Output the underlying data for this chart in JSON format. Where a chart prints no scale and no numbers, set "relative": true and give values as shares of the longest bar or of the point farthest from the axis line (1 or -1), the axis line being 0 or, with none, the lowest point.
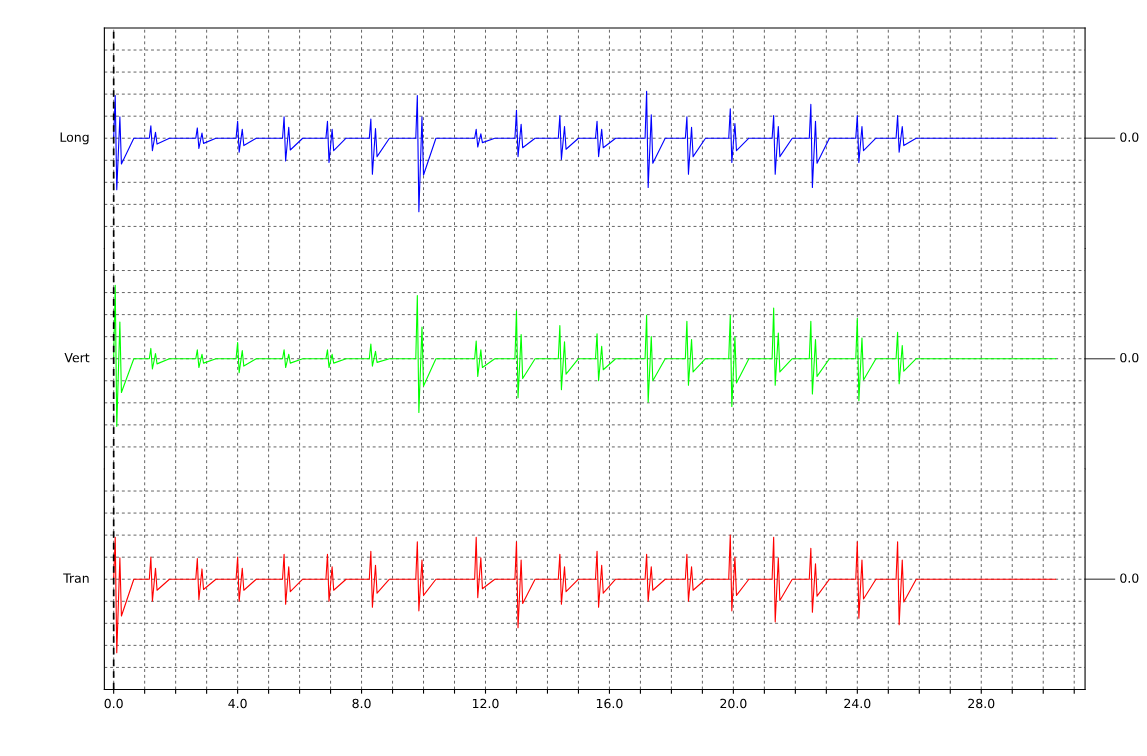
{
  "chart_data": [
    {
      "type": "line",
      "ylabel": "Long",
      "relative": true,
      "tick_labels": false,
      "grid": true,
      "annotations": [
        "0.0"
      ],
      "ref_lines": [
        {
          "axis": "x",
          "value": 0,
          "color": "#000000",
          "line_style": "dashed"
        }
      ],
      "xlim": [
        -0.3,
        31.35
      ],
      "x": [
        0,
        0.05,
        0.1,
        0.2,
        0.25,
        0.65,
        1.15,
        1.2,
        1.25,
        1.35,
        1.4,
        1.8,
        2.65,
        2.7,
        2.75,
        2.85,
        2.9,
        3.3,
        3.95,
        4.0,
        4.05,
        4.15,
        4.2,
        4.6,
        5.45,
        5.5,
        5.55,
        5.65,
        5.7,
        6.1,
        6.85,
        6.9,
        6.95,
        7.05,
        7.1,
        7.5,
        8.25,
        8.3,
        8.35,
        8.45,
        8.5,
        8.9,
        9.75,
        9.8,
        9.85,
        9.95,
        10.0,
        10.4,
        11.65,
        11.7,
        11.75,
        11.85,
        11.9,
        12.3,
        12.95,
        13.0,
        13.05,
        13.15,
        13.2,
        13.6,
        14.35,
        14.4,
        14.45,
        14.55,
        14.6,
        15.0,
        15.55,
        15.6,
        15.65,
        15.75,
        15.8,
        16.2,
        17.15,
        17.2,
        17.25,
        17.35,
        17.4,
        17.8,
        18.45,
        18.5,
        18.55,
        18.65,
        18.7,
        19.1,
        19.85,
        19.9,
        19.95,
        20.05,
        20.1,
        20.5,
        21.25,
        21.3,
        21.35,
        21.45,
        21.5,
        21.9,
        22.45,
        22.5,
        22.55,
        22.65,
        22.7,
        23.1,
        23.95,
        24.0,
        24.05,
        24.15,
        24.2,
        24.6,
        25.25,
        25.3,
        25.35,
        25.45,
        25.5,
        25.9,
        30.4
      ],
      "series": [
        {
          "color": "#0000ff",
          "values": [
            0,
            0.58,
            -0.7,
            0.29,
            -0.35,
            0,
            0,
            0.17,
            -0.17,
            0.08,
            -0.08,
            0,
            0,
            0.14,
            -0.14,
            0.07,
            -0.07,
            0,
            0,
            0.23,
            -0.19,
            0.12,
            -0.1,
            0,
            0,
            0.29,
            -0.31,
            0.15,
            -0.16,
            0,
            0,
            0.23,
            -0.33,
            0.12,
            -0.17,
            0,
            0,
            0.26,
            -0.49,
            0.13,
            -0.25,
            0,
            0,
            0.58,
            -1,
            0.29,
            -0.5,
            0,
            0,
            0.12,
            -0.12,
            0.06,
            -0.06,
            0,
            0,
            0.38,
            -0.25,
            0.19,
            -0.13,
            0,
            0,
            0.31,
            -0.29,
            0.16,
            -0.15,
            0,
            0,
            0.23,
            -0.25,
            0.12,
            -0.13,
            0,
            0,
            0.64,
            -0.67,
            0.32,
            -0.34,
            0,
            0,
            0.29,
            -0.49,
            0.15,
            -0.25,
            0,
            0,
            0.4,
            -0.33,
            0.2,
            -0.17,
            0,
            0,
            0.31,
            -0.49,
            0.16,
            -0.25,
            0,
            0,
            0.46,
            -0.67,
            0.23,
            -0.34,
            0,
            0,
            0.31,
            -0.33,
            0.16,
            -0.17,
            0,
            0,
            0.31,
            -0.19,
            0.16,
            -0.1,
            0,
            0
          ]
        }
      ]
    },
    {
      "type": "line",
      "ylabel": "Vert",
      "relative": true,
      "tick_labels": false,
      "grid": true,
      "annotations": [
        "0.0"
      ],
      "ref_lines": [
        {
          "axis": "x",
          "value": 0,
          "color": "#000000",
          "line_style": "dashed"
        }
      ],
      "xlim": [
        -0.3,
        31.35
      ],
      "x": [
        0,
        0.05,
        0.1,
        0.2,
        0.25,
        0.65,
        1.15,
        1.2,
        1.25,
        1.35,
        1.4,
        1.8,
        2.65,
        2.7,
        2.75,
        2.85,
        2.9,
        3.3,
        3.95,
        4.0,
        4.05,
        4.15,
        4.2,
        4.6,
        5.45,
        5.5,
        5.55,
        5.65,
        5.7,
        6.1,
        6.85,
        6.9,
        6.95,
        7.05,
        7.1,
        7.5,
        8.25,
        8.3,
        8.35,
        8.45,
        8.5,
        8.9,
        9.75,
        9.8,
        9.85,
        9.95,
        10.0,
        10.4,
        11.65,
        11.7,
        11.75,
        11.85,
        11.9,
        12.3,
        12.95,
        13.0,
        13.05,
        13.15,
        13.2,
        13.6,
        14.35,
        14.4,
        14.45,
        14.55,
        14.6,
        15.0,
        15.55,
        15.6,
        15.65,
        15.75,
        15.8,
        16.2,
        17.15,
        17.2,
        17.25,
        17.35,
        17.4,
        17.8,
        18.45,
        18.5,
        18.55,
        18.65,
        18.7,
        19.1,
        19.85,
        19.9,
        19.95,
        20.05,
        20.1,
        20.5,
        21.25,
        21.3,
        21.35,
        21.45,
        21.5,
        21.9,
        22.45,
        22.5,
        22.55,
        22.65,
        22.7,
        23.1,
        23.95,
        24.0,
        24.05,
        24.15,
        24.2,
        24.6,
        25.25,
        25.3,
        25.35,
        25.45,
        25.5,
        25.9,
        30.4
      ],
      "series": [
        {
          "color": "#00ff00",
          "values": [
            0,
            1,
            -0.92,
            0.5,
            -0.46,
            0,
            0,
            0.14,
            -0.14,
            0.07,
            -0.07,
            0,
            0,
            0.12,
            -0.12,
            0.06,
            -0.06,
            0,
            0,
            0.22,
            -0.19,
            0.11,
            -0.1,
            0,
            0,
            0.12,
            -0.12,
            0.06,
            -0.06,
            0,
            0,
            0.12,
            -0.12,
            0.06,
            -0.06,
            0,
            0,
            0.2,
            -0.1,
            0.1,
            -0.05,
            0,
            0,
            0.86,
            -0.73,
            0.43,
            -0.37,
            0,
            0,
            0.24,
            -0.24,
            0.12,
            -0.12,
            0,
            0,
            0.65,
            -0.53,
            0.33,
            -0.27,
            0,
            0,
            0.45,
            -0.42,
            0.23,
            -0.21,
            0,
            0,
            0.34,
            -0.3,
            0.17,
            -0.15,
            0,
            0,
            0.59,
            -0.59,
            0.3,
            -0.3,
            0,
            0,
            0.51,
            -0.36,
            0.26,
            -0.18,
            0,
            0,
            0.59,
            -0.65,
            0.3,
            -0.33,
            0,
            0,
            0.69,
            -0.36,
            0.35,
            -0.18,
            0,
            0,
            0.51,
            -0.48,
            0.26,
            -0.24,
            0,
            0,
            0.55,
            -0.57,
            0.28,
            -0.29,
            0,
            0,
            0.36,
            -0.34,
            0.18,
            -0.17,
            0,
            0
          ]
        }
      ]
    },
    {
      "type": "line",
      "ylabel": "Tran",
      "relative": true,
      "tick_labels": "x",
      "grid": true,
      "annotations": [
        "0.0"
      ],
      "ref_lines": [
        {
          "axis": "x",
          "value": 0,
          "color": "#000000",
          "line_style": "dashed"
        }
      ],
      "xlim": [
        -0.3,
        31.35
      ],
      "xticks": [
        {
          "value": 0,
          "label": "0.0"
        },
        {
          "value": 1,
          "label": null
        },
        {
          "value": 2,
          "label": null
        },
        {
          "value": 3,
          "label": null
        },
        {
          "value": 4,
          "label": "4.0"
        },
        {
          "value": 5,
          "label": null
        },
        {
          "value": 6,
          "label": null
        },
        {
          "value": 7,
          "label": null
        },
        {
          "value": 8,
          "label": "8.0"
        },
        {
          "value": 9,
          "label": null
        },
        {
          "value": 10,
          "label": null
        },
        {
          "value": 11,
          "label": null
        },
        {
          "value": 12,
          "label": "12.0"
        },
        {
          "value": 13,
          "label": null
        },
        {
          "value": 14,
          "label": null
        },
        {
          "value": 15,
          "label": null
        },
        {
          "value": 16,
          "label": "16.0"
        },
        {
          "value": 17,
          "label": null
        },
        {
          "value": 18,
          "label": null
        },
        {
          "value": 19,
          "label": null
        },
        {
          "value": 20,
          "label": "20.0"
        },
        {
          "value": 21,
          "label": null
        },
        {
          "value": 22,
          "label": null
        },
        {
          "value": 23,
          "label": null
        },
        {
          "value": 24,
          "label": "24.0"
        },
        {
          "value": 25,
          "label": null
        },
        {
          "value": 26,
          "label": null
        },
        {
          "value": 27,
          "label": null
        },
        {
          "value": 28,
          "label": "28.0"
        },
        {
          "value": 29,
          "label": null
        },
        {
          "value": 30,
          "label": null
        },
        {
          "value": 31,
          "label": null
        }
      ],
      "x": [
        0,
        0.05,
        0.1,
        0.2,
        0.25,
        0.65,
        1.15,
        1.2,
        1.25,
        1.35,
        1.4,
        1.8,
        2.65,
        2.7,
        2.75,
        2.85,
        2.9,
        3.3,
        3.95,
        4.0,
        4.05,
        4.15,
        4.2,
        4.6,
        5.45,
        5.5,
        5.55,
        5.65,
        5.7,
        6.1,
        6.85,
        6.9,
        6.95,
        7.05,
        7.1,
        7.5,
        8.25,
        8.3,
        8.35,
        8.45,
        8.5,
        8.9,
        9.75,
        9.8,
        9.85,
        9.95,
        10.0,
        10.4,
        11.65,
        11.7,
        11.75,
        11.85,
        11.9,
        12.3,
        12.95,
        13.0,
        13.05,
        13.15,
        13.2,
        13.6,
        14.35,
        14.4,
        14.45,
        14.55,
        14.6,
        15.0,
        15.55,
        15.6,
        15.65,
        15.75,
        15.8,
        16.2,
        17.15,
        17.2,
        17.25,
        17.35,
        17.4,
        17.8,
        18.45,
        18.5,
        18.55,
        18.65,
        18.7,
        19.1,
        19.85,
        19.9,
        19.95,
        20.05,
        20.1,
        20.5,
        21.25,
        21.3,
        21.35,
        21.45,
        21.5,
        21.9,
        22.45,
        22.5,
        22.55,
        22.65,
        22.7,
        23.1,
        23.95,
        24.0,
        24.05,
        24.15,
        24.2,
        24.6,
        25.25,
        25.3,
        25.35,
        25.45,
        25.5,
        25.9,
        30.4
      ],
      "series": [
        {
          "color": "#ff0000",
          "values": [
            0,
            0.57,
            -1,
            0.29,
            -0.5,
            0,
            0,
            0.3,
            -0.3,
            0.15,
            -0.15,
            0,
            0,
            0.28,
            -0.28,
            0.14,
            -0.14,
            0,
            0,
            0.3,
            -0.3,
            0.15,
            -0.15,
            0,
            0,
            0.34,
            -0.34,
            0.17,
            -0.17,
            0,
            0,
            0.34,
            -0.3,
            0.17,
            -0.15,
            0,
            0,
            0.38,
            -0.38,
            0.19,
            -0.19,
            0,
            0,
            0.51,
            -0.43,
            0.26,
            -0.22,
            0,
            0,
            0.57,
            -0.25,
            0.29,
            -0.13,
            0,
            0,
            0.51,
            -0.66,
            0.26,
            -0.33,
            0,
            0,
            0.34,
            -0.34,
            0.17,
            -0.17,
            0,
            0,
            0.38,
            -0.38,
            0.19,
            -0.19,
            0,
            0,
            0.34,
            -0.3,
            0.17,
            -0.15,
            0,
            0,
            0.34,
            -0.3,
            0.17,
            -0.15,
            0,
            0,
            0.6,
            -0.43,
            0.3,
            -0.22,
            0,
            0,
            0.57,
            -0.58,
            0.29,
            -0.29,
            0,
            0,
            0.42,
            -0.45,
            0.21,
            -0.23,
            0,
            0,
            0.51,
            -0.53,
            0.26,
            -0.27,
            0,
            0,
            0.51,
            -0.62,
            0.26,
            -0.31,
            0,
            0
          ]
        }
      ]
    }
  ]
}
